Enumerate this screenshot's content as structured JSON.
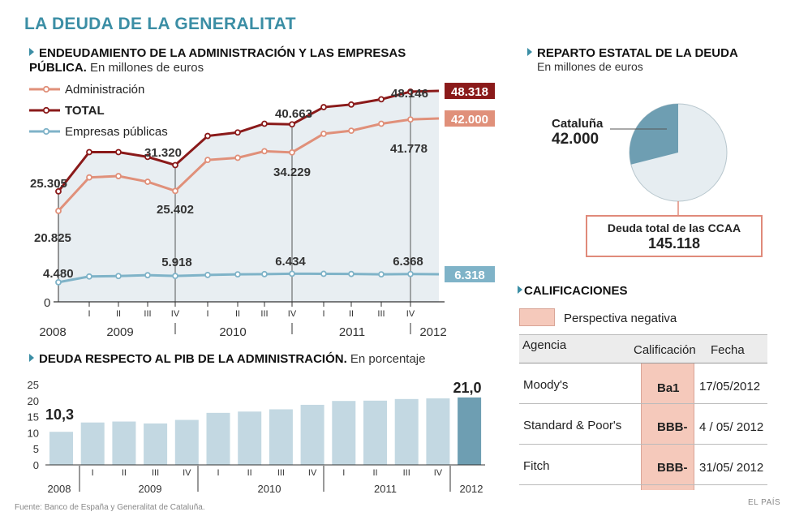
{
  "title": "LA DEUDA DE LA GENERALITAT",
  "source": "Fuente: Banco de España y Generalitat de Cataluña.",
  "brand": "EL PAÍS",
  "colors": {
    "title": "#3b8ea5",
    "administracion": "#e0907a",
    "total": "#8a1a1a",
    "empresas": "#7fb3c8",
    "bar": "#c3d8e2",
    "bar_last": "#6e9eb2",
    "pie_cat": "#6e9eb2",
    "pie_rest": "#e6edf1",
    "rating_shade": "#f5c9bb"
  },
  "chart_data": [
    {
      "type": "line",
      "title": "ENDEUDAMIENTO DE LA ADMINISTRACIÓN Y LAS EMPRESAS PÚBLICA.",
      "title_line1": "ENDEUDAMIENTO DE LA ADMINISTRACIÓN Y LAS EMPRESAS",
      "title_line2": "PÚBLICA.",
      "subtitle": "En millones de euros",
      "periods": [
        "2008",
        "I",
        "II",
        "III",
        "IV",
        "I",
        "II",
        "III",
        "IV",
        "I",
        "II",
        "III",
        "IV",
        "2012"
      ],
      "tick_labels": [
        "I",
        "II",
        "III",
        "IV",
        "I",
        "II",
        "III",
        "IV",
        "I",
        "II",
        "III",
        "IV"
      ],
      "year_labels": [
        "2008",
        "2009",
        "2010",
        "2011",
        "2012"
      ],
      "ylim": [
        0,
        50000
      ],
      "zero_label": "0",
      "legend": [
        "Administración",
        "TOTAL",
        "Empresas públicas"
      ],
      "series": [
        {
          "name": "Administración",
          "values": [
            20825,
            28500,
            28800,
            27500,
            25402,
            32500,
            33000,
            34500,
            34229,
            38500,
            39200,
            40800,
            41778,
            42000
          ],
          "end_label": "42.000"
        },
        {
          "name": "TOTAL",
          "values": [
            25305,
            34300,
            34300,
            33200,
            31320,
            38000,
            38800,
            40800,
            40663,
            44600,
            45200,
            46400,
            48146,
            48318
          ],
          "end_label": "48.318"
        },
        {
          "name": "Empresas públicas",
          "values": [
            4480,
            5800,
            5900,
            6100,
            5918,
            6150,
            6300,
            6350,
            6434,
            6420,
            6380,
            6300,
            6368,
            6318
          ],
          "end_label": "6.318"
        }
      ],
      "annotations": [
        {
          "period": "2008",
          "total": "25.305",
          "admin": "20.825",
          "emp": "4.480"
        },
        {
          "period": "IV 2009",
          "total": "31.320",
          "admin": "25.402",
          "emp": "5.918"
        },
        {
          "period": "IV 2010",
          "total": "40.663",
          "admin": "34.229",
          "emp": "6.434"
        },
        {
          "period": "IV 2011",
          "total": "48.146",
          "admin": "41.778",
          "emp": "6.368"
        }
      ]
    },
    {
      "type": "bar",
      "title": "DEUDA RESPECTO AL PIB DE LA ADMINISTRACIÓN.",
      "subtitle": "En porcentaje",
      "categories": [
        "2008",
        "I",
        "II",
        "III",
        "IV",
        "I",
        "II",
        "III",
        "IV",
        "I",
        "II",
        "III",
        "IV",
        "2012"
      ],
      "tick_labels": [
        "I",
        "II",
        "III",
        "IV",
        "I",
        "II",
        "III",
        "IV",
        "I",
        "II",
        "III",
        "IV"
      ],
      "year_labels": [
        "2008",
        "2009",
        "2010",
        "2011",
        "2012"
      ],
      "values": [
        10.3,
        13.2,
        13.5,
        12.9,
        14.0,
        16.2,
        16.6,
        17.3,
        18.7,
        19.9,
        20.0,
        20.5,
        20.7,
        21.0
      ],
      "first_label": "10,3",
      "last_label": "21,0",
      "yticks": [
        "0",
        "5",
        "10",
        "15",
        "20",
        "25"
      ],
      "ylim": [
        0,
        25
      ]
    },
    {
      "type": "pie",
      "title": "REPARTO ESTATAL DE LA DEUDA",
      "subtitle": "En millones de euros",
      "slices": [
        {
          "name": "Cataluña",
          "value": 42000,
          "label": "42.000"
        },
        {
          "name": "Resto",
          "value": 103118
        }
      ],
      "total_label": "Deuda total de las CCAA",
      "total_value": "145.118"
    }
  ],
  "ratings": {
    "title": "CALIFICACIONES",
    "legend": "Perspectiva negativa",
    "headers": [
      "Agencia",
      "Calificación",
      "Fecha"
    ],
    "rows": [
      {
        "agency": "Moody's",
        "rating": "Ba1",
        "date": "17/05/2012"
      },
      {
        "agency": "Standard & Poor's",
        "rating": "BBB-",
        "date": "4 / 05/ 2012"
      },
      {
        "agency": "Fitch",
        "rating": "BBB-",
        "date": "31/05/ 2012"
      }
    ]
  }
}
